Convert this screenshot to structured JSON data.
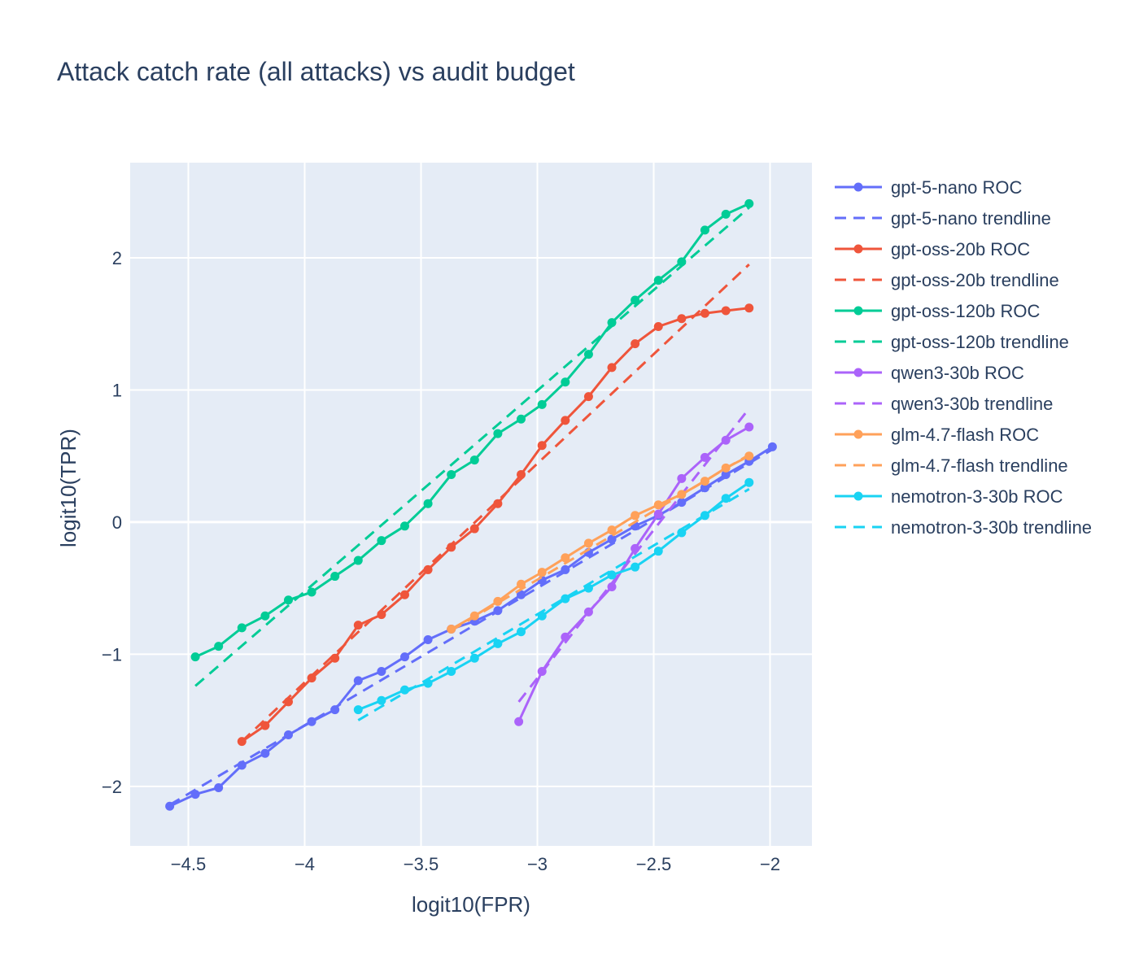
{
  "chart_data": {
    "type": "line",
    "title": "Attack catch rate (all attacks) vs audit budget",
    "xlabel": "logit10(FPR)",
    "ylabel": "logit10(TPR)",
    "xlim": [
      -4.75,
      -1.82
    ],
    "ylim": [
      -2.45,
      2.72
    ],
    "xticks": [
      -4.5,
      -4,
      -3.5,
      -3,
      -2.5,
      -2
    ],
    "yticks": [
      -2,
      -1,
      0,
      1,
      2
    ],
    "xtick_labels": [
      "−4.5",
      "−4",
      "−3.5",
      "−3",
      "−2.5",
      "−2"
    ],
    "ytick_labels": [
      "−2",
      "−1",
      "0",
      "1",
      "2"
    ],
    "grid": true,
    "legend_position": "right",
    "series": [
      {
        "name": "gpt-5-nano ROC",
        "kind": "roc",
        "color": "#636efa",
        "x": [
          -4.58,
          -4.47,
          -4.37,
          -4.27,
          -4.17,
          -4.07,
          -3.97,
          -3.87,
          -3.77,
          -3.67,
          -3.57,
          -3.47,
          -3.37,
          -3.27,
          -3.17,
          -3.07,
          -2.98,
          -2.88,
          -2.78,
          -2.68,
          -2.58,
          -2.48,
          -2.38,
          -2.28,
          -2.19,
          -2.09,
          -1.99
        ],
        "y": [
          -2.15,
          -2.06,
          -2.01,
          -1.84,
          -1.75,
          -1.61,
          -1.51,
          -1.42,
          -1.2,
          -1.13,
          -1.02,
          -0.89,
          -0.81,
          -0.75,
          -0.67,
          -0.55,
          -0.44,
          -0.36,
          -0.23,
          -0.13,
          -0.03,
          0.05,
          0.15,
          0.26,
          0.36,
          0.46,
          0.57
        ]
      },
      {
        "name": "gpt-5-nano trendline",
        "kind": "trend",
        "color": "#636efa",
        "x": [
          -4.58,
          -1.99
        ],
        "y": [
          -2.14,
          0.55
        ]
      },
      {
        "name": "gpt-oss-20b ROC",
        "kind": "roc",
        "color": "#ef553b",
        "x": [
          -4.27,
          -4.17,
          -4.07,
          -3.97,
          -3.87,
          -3.77,
          -3.67,
          -3.57,
          -3.47,
          -3.37,
          -3.27,
          -3.17,
          -3.07,
          -2.98,
          -2.88,
          -2.78,
          -2.68,
          -2.58,
          -2.48,
          -2.38,
          -2.28,
          -2.19,
          -2.09
        ],
        "y": [
          -1.66,
          -1.54,
          -1.36,
          -1.18,
          -1.03,
          -0.78,
          -0.7,
          -0.55,
          -0.36,
          -0.19,
          -0.05,
          0.14,
          0.36,
          0.58,
          0.77,
          0.95,
          1.17,
          1.35,
          1.48,
          1.54,
          1.58,
          1.6,
          1.62
        ]
      },
      {
        "name": "gpt-oss-20b trendline",
        "kind": "trend",
        "color": "#ef553b",
        "x": [
          -4.27,
          -2.09
        ],
        "y": [
          -1.66,
          1.95
        ]
      },
      {
        "name": "gpt-oss-120b ROC",
        "kind": "roc",
        "color": "#00cc96",
        "x": [
          -4.47,
          -4.37,
          -4.27,
          -4.17,
          -4.07,
          -3.97,
          -3.87,
          -3.77,
          -3.67,
          -3.57,
          -3.47,
          -3.37,
          -3.27,
          -3.17,
          -3.07,
          -2.98,
          -2.88,
          -2.78,
          -2.68,
          -2.58,
          -2.48,
          -2.38,
          -2.28,
          -2.19,
          -2.09
        ],
        "y": [
          -1.02,
          -0.94,
          -0.8,
          -0.71,
          -0.59,
          -0.53,
          -0.41,
          -0.29,
          -0.14,
          -0.03,
          0.14,
          0.36,
          0.47,
          0.67,
          0.78,
          0.89,
          1.06,
          1.27,
          1.51,
          1.68,
          1.83,
          1.97,
          2.21,
          2.33,
          2.41
        ]
      },
      {
        "name": "gpt-oss-120b trendline",
        "kind": "trend",
        "color": "#00cc96",
        "x": [
          -4.47,
          -2.09
        ],
        "y": [
          -1.24,
          2.38
        ]
      },
      {
        "name": "qwen3-30b ROC",
        "kind": "roc",
        "color": "#ab63fa",
        "x": [
          -3.08,
          -2.98,
          -2.88,
          -2.78,
          -2.68,
          -2.58,
          -2.48,
          -2.38,
          -2.28,
          -2.19,
          -2.09
        ],
        "y": [
          -1.51,
          -1.13,
          -0.87,
          -0.68,
          -0.49,
          -0.2,
          0.06,
          0.33,
          0.49,
          0.62,
          0.72
        ]
      },
      {
        "name": "qwen3-30b trendline",
        "kind": "trend",
        "color": "#ab63fa",
        "x": [
          -3.08,
          -2.09
        ],
        "y": [
          -1.36,
          0.86
        ]
      },
      {
        "name": "glm-4.7-flash ROC",
        "kind": "roc",
        "color": "#ffa15a",
        "x": [
          -3.37,
          -3.27,
          -3.17,
          -3.07,
          -2.98,
          -2.88,
          -2.78,
          -2.68,
          -2.58,
          -2.48,
          -2.38,
          -2.28,
          -2.19,
          -2.09
        ],
        "y": [
          -0.81,
          -0.71,
          -0.6,
          -0.47,
          -0.38,
          -0.27,
          -0.16,
          -0.06,
          0.05,
          0.13,
          0.21,
          0.31,
          0.41,
          0.5
        ]
      },
      {
        "name": "glm-4.7-flash trendline",
        "kind": "trend",
        "color": "#ffa15a",
        "x": [
          -3.37,
          -2.09
        ],
        "y": [
          -0.82,
          0.51
        ]
      },
      {
        "name": "nemotron-3-30b ROC",
        "kind": "roc",
        "color": "#19d3f3",
        "x": [
          -3.77,
          -3.67,
          -3.57,
          -3.47,
          -3.37,
          -3.27,
          -3.17,
          -3.07,
          -2.98,
          -2.88,
          -2.78,
          -2.68,
          -2.58,
          -2.48,
          -2.38,
          -2.28,
          -2.19,
          -2.09
        ],
        "y": [
          -1.42,
          -1.35,
          -1.27,
          -1.22,
          -1.13,
          -1.03,
          -0.92,
          -0.83,
          -0.71,
          -0.58,
          -0.5,
          -0.4,
          -0.34,
          -0.22,
          -0.08,
          0.05,
          0.18,
          0.3
        ]
      },
      {
        "name": "nemotron-3-30b trendline",
        "kind": "trend",
        "color": "#19d3f3",
        "x": [
          -3.77,
          -2.09
        ],
        "y": [
          -1.5,
          0.25
        ]
      }
    ]
  }
}
